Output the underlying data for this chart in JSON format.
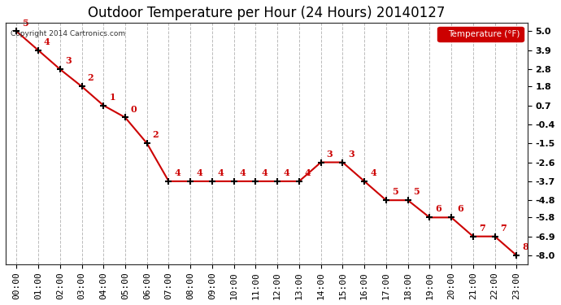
{
  "title": "Outdoor Temperature per Hour (24 Hours) 20140127",
  "copyright": "Copyright 2014 Cartronics.com",
  "legend_label": "Temperature (°F)",
  "hours": [
    "00:00",
    "01:00",
    "02:00",
    "03:00",
    "04:00",
    "05:00",
    "06:00",
    "07:00",
    "08:00",
    "09:00",
    "10:00",
    "11:00",
    "12:00",
    "13:00",
    "14:00",
    "15:00",
    "16:00",
    "17:00",
    "18:00",
    "19:00",
    "20:00",
    "21:00",
    "22:00",
    "23:00"
  ],
  "temperatures": [
    5.0,
    3.9,
    2.8,
    1.8,
    0.7,
    0.0,
    -1.5,
    -3.7,
    -3.7,
    -3.7,
    -3.7,
    -3.7,
    -3.7,
    -3.7,
    -2.6,
    -2.6,
    -3.7,
    -4.8,
    -4.8,
    -5.8,
    -5.8,
    -6.9,
    -6.9,
    -8.0
  ],
  "yticks": [
    5.0,
    3.9,
    2.8,
    1.8,
    0.7,
    -0.4,
    -1.5,
    -2.6,
    -3.7,
    -4.8,
    -5.8,
    -6.9,
    -8.0
  ],
  "ylim": [
    -8.5,
    5.5
  ],
  "line_color": "#cc0000",
  "marker_color": "#000000",
  "label_color": "#cc0000",
  "bg_color": "#ffffff",
  "grid_color": "#bbbbbb",
  "legend_bg": "#cc0000",
  "legend_text": "#ffffff",
  "title_fontsize": 12,
  "tick_fontsize": 8,
  "label_fontsize": 8
}
